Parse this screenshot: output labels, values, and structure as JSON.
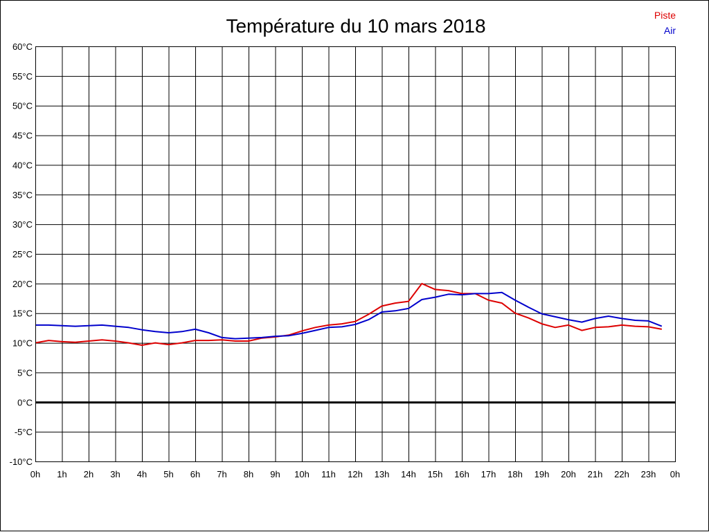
{
  "chart_data": {
    "type": "line",
    "title": "Température du 10 mars 2018",
    "xlabel": "",
    "ylabel": "",
    "x_tick_labels": [
      "0h",
      "1h",
      "2h",
      "3h",
      "4h",
      "5h",
      "6h",
      "7h",
      "8h",
      "9h",
      "10h",
      "11h",
      "12h",
      "13h",
      "14h",
      "15h",
      "16h",
      "17h",
      "18h",
      "19h",
      "20h",
      "21h",
      "22h",
      "23h",
      "0h"
    ],
    "y_ticks": [
      -10,
      -5,
      0,
      5,
      10,
      15,
      20,
      25,
      30,
      35,
      40,
      45,
      50,
      55,
      60
    ],
    "y_tick_suffix": "°C",
    "xlim": [
      0,
      24
    ],
    "ylim": [
      -10,
      60
    ],
    "grid": true,
    "zero_line": true,
    "legend_position": "top-right",
    "x_hours": [
      0,
      0.5,
      1,
      1.5,
      2,
      2.5,
      3,
      3.5,
      4,
      4.5,
      5,
      5.5,
      6,
      6.5,
      7,
      7.5,
      8,
      8.5,
      9,
      9.5,
      10,
      10.5,
      11,
      11.5,
      12,
      12.5,
      13,
      13.5,
      14,
      14.5,
      15,
      15.5,
      16,
      16.5,
      17,
      17.5,
      18,
      18.5,
      19,
      19.5,
      20,
      20.5,
      21,
      21.5,
      22,
      22.5,
      23,
      23.5
    ],
    "series": [
      {
        "name": "Piste",
        "color": "#dd0000",
        "values": [
          10.0,
          10.4,
          10.2,
          10.1,
          10.3,
          10.5,
          10.3,
          10.0,
          9.6,
          10.0,
          9.7,
          10.0,
          10.4,
          10.4,
          10.5,
          10.3,
          10.3,
          10.8,
          11.0,
          11.3,
          12.0,
          12.6,
          13.0,
          13.2,
          13.6,
          14.8,
          16.2,
          16.7,
          17.0,
          20.0,
          19.0,
          18.8,
          18.3,
          18.3,
          17.2,
          16.7,
          15.0,
          14.2,
          13.2,
          12.6,
          13.0,
          12.1,
          12.6,
          12.7,
          13.0,
          12.8,
          12.7,
          12.3
        ]
      },
      {
        "name": "Air",
        "color": "#0000cc",
        "values": [
          13.0,
          13.0,
          12.9,
          12.8,
          12.9,
          13.0,
          12.8,
          12.6,
          12.2,
          11.9,
          11.7,
          11.9,
          12.3,
          11.7,
          10.9,
          10.7,
          10.8,
          10.9,
          11.1,
          11.2,
          11.6,
          12.1,
          12.6,
          12.7,
          13.1,
          13.9,
          15.2,
          15.4,
          15.8,
          17.3,
          17.7,
          18.2,
          18.1,
          18.3,
          18.3,
          18.5,
          17.2,
          16.0,
          14.9,
          14.4,
          13.9,
          13.5,
          14.1,
          14.5,
          14.1,
          13.8,
          13.7,
          12.8
        ]
      }
    ]
  }
}
